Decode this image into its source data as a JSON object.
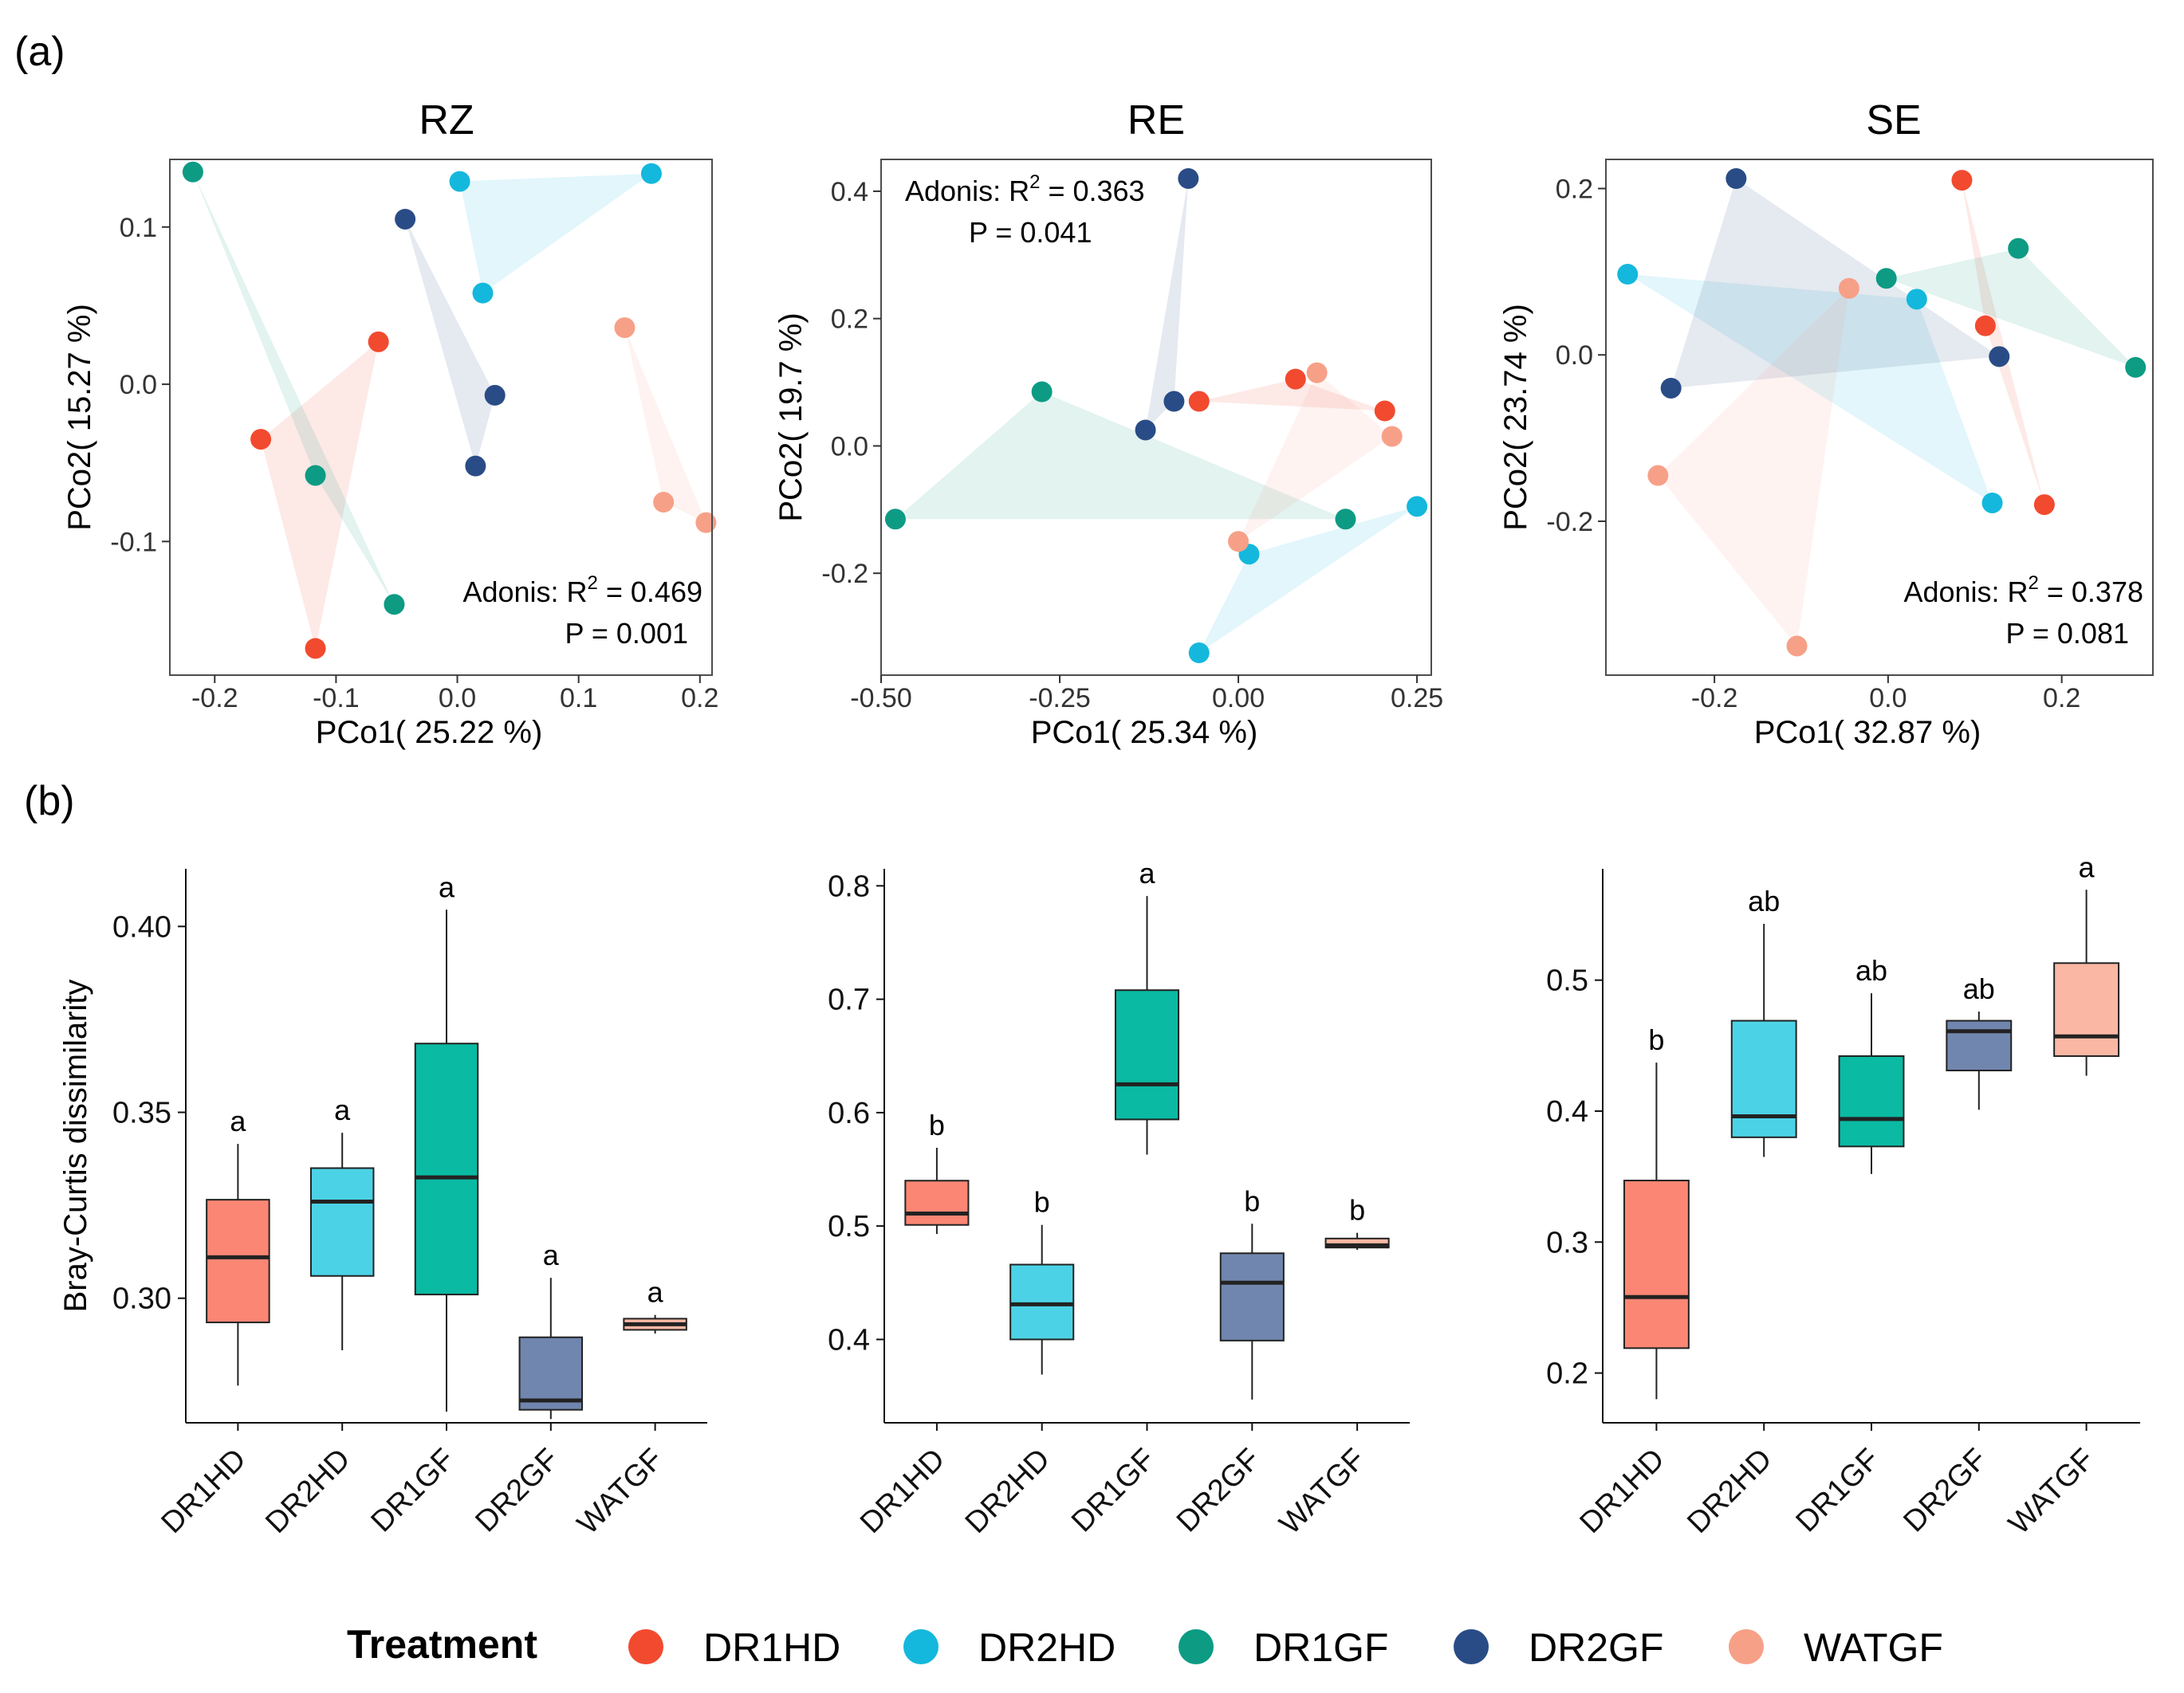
{
  "panel_labels": {
    "a": "(a)",
    "b": "(b)"
  },
  "colors": {
    "DR1HD": "#F24A2F",
    "DR2HD": "#14B8DC",
    "DR1GF": "#0D9B84",
    "DR2GF": "#2A4C86",
    "WATGF": "#F7A088",
    "box_DR1HD": "#FB8674",
    "box_DR2HD": "#4CD2E6",
    "box_DR1GF": "#0ABAA3",
    "box_DR2GF": "#7086AE",
    "box_WATGF": "#FAB8A4"
  },
  "legend": {
    "title": "Treatment",
    "items": [
      "DR1HD",
      "DR2HD",
      "DR1GF",
      "DR2GF",
      "WATGF"
    ]
  },
  "chart_data": [
    {
      "id": "pcoa_RZ",
      "type": "scatter",
      "title": "RZ",
      "xlabel": "PCo1( 25.22 %)",
      "ylabel": "PCo2( 15.27 %)",
      "xlim": [
        -0.237,
        0.21
      ],
      "ylim": [
        -0.185,
        0.143
      ],
      "xticks": [
        -0.2,
        -0.1,
        0.0,
        0.1,
        0.2
      ],
      "xtick_labels": [
        "-0.2",
        "-0.1",
        "0.0",
        "0.1",
        "0.2"
      ],
      "yticks": [
        -0.1,
        0.0,
        0.1
      ],
      "ytick_labels": [
        "-0.1",
        "0.0",
        "0.1"
      ],
      "adonis": {
        "text": "Adonis: R",
        "sup": "2",
        "value": " = 0.469",
        "p": "P = 0.001",
        "position": "bottom-right"
      },
      "series": [
        {
          "name": "DR1HD",
          "points": [
            [
              -0.065,
              0.027
            ],
            [
              -0.162,
              -0.035
            ],
            [
              -0.117,
              -0.168
            ]
          ]
        },
        {
          "name": "DR2HD",
          "points": [
            [
              0.002,
              0.129
            ],
            [
              0.16,
              0.134
            ],
            [
              0.021,
              0.058
            ]
          ]
        },
        {
          "name": "DR1GF",
          "points": [
            [
              -0.218,
              0.135
            ],
            [
              -0.117,
              -0.058
            ],
            [
              -0.052,
              -0.14
            ]
          ]
        },
        {
          "name": "DR2GF",
          "points": [
            [
              -0.043,
              0.105
            ],
            [
              0.031,
              -0.007
            ],
            [
              0.015,
              -0.052
            ]
          ]
        },
        {
          "name": "WATGF",
          "points": [
            [
              0.138,
              0.036
            ],
            [
              0.17,
              -0.075
            ],
            [
              0.205,
              -0.088
            ]
          ]
        }
      ]
    },
    {
      "id": "pcoa_RE",
      "type": "scatter",
      "title": "RE",
      "xlabel": "PCo1( 25.34 %)",
      "ylabel": "PCo2( 19.7 %)",
      "xlim": [
        -0.5,
        0.27
      ],
      "ylim": [
        -0.36,
        0.45
      ],
      "xticks": [
        -0.5,
        -0.25,
        0.0,
        0.25
      ],
      "xtick_labels": [
        "-0.50",
        "-0.25",
        "0.00",
        "0.25"
      ],
      "yticks": [
        -0.2,
        0.0,
        0.2,
        0.4
      ],
      "ytick_labels": [
        "-0.2",
        "0.0",
        "0.2",
        "0.4"
      ],
      "adonis": {
        "text": "Adonis: R",
        "sup": "2",
        "value": " = 0.363",
        "p": "P = 0.041",
        "position": "top-left"
      },
      "series": [
        {
          "name": "DR1HD",
          "points": [
            [
              -0.055,
              0.07
            ],
            [
              0.08,
              0.105
            ],
            [
              0.205,
              0.055
            ]
          ]
        },
        {
          "name": "DR2HD",
          "points": [
            [
              0.25,
              -0.095
            ],
            [
              0.015,
              -0.17
            ],
            [
              -0.055,
              -0.325
            ]
          ]
        },
        {
          "name": "DR1GF",
          "points": [
            [
              -0.275,
              0.085
            ],
            [
              -0.48,
              -0.115
            ],
            [
              0.15,
              -0.115
            ]
          ]
        },
        {
          "name": "DR2GF",
          "points": [
            [
              -0.07,
              0.42
            ],
            [
              -0.09,
              0.07
            ],
            [
              -0.13,
              0.025
            ]
          ]
        },
        {
          "name": "WATGF",
          "points": [
            [
              0.11,
              0.115
            ],
            [
              0.215,
              0.015
            ],
            [
              0.0,
              -0.15
            ]
          ]
        }
      ]
    },
    {
      "id": "pcoa_SE",
      "type": "scatter",
      "title": "SE",
      "xlabel": "PCo1( 32.87 %)",
      "ylabel": "PCo2( 23.74 %)",
      "xlim": [
        -0.325,
        0.305
      ],
      "ylim": [
        -0.385,
        0.235
      ],
      "xticks": [
        -0.2,
        0.0,
        0.2
      ],
      "xtick_labels": [
        "-0.2",
        "0.0",
        "0.2"
      ],
      "yticks": [
        -0.2,
        0.0,
        0.2
      ],
      "ytick_labels": [
        "-0.2",
        "0.0",
        "0.2"
      ],
      "adonis": {
        "text": "Adonis: R",
        "sup": "2",
        "value": " = 0.378",
        "p": "P = 0.081",
        "position": "bottom-right"
      },
      "series": [
        {
          "name": "DR1HD",
          "points": [
            [
              0.085,
              0.21
            ],
            [
              0.112,
              0.035
            ],
            [
              0.18,
              -0.18
            ]
          ]
        },
        {
          "name": "DR2HD",
          "points": [
            [
              -0.3,
              0.097
            ],
            [
              0.033,
              0.067
            ],
            [
              0.12,
              -0.178
            ]
          ]
        },
        {
          "name": "DR1GF",
          "points": [
            [
              -0.002,
              0.092
            ],
            [
              0.15,
              0.128
            ],
            [
              0.285,
              -0.015
            ]
          ]
        },
        {
          "name": "DR2GF",
          "points": [
            [
              -0.175,
              0.212
            ],
            [
              -0.25,
              -0.04
            ],
            [
              0.128,
              -0.002
            ]
          ]
        },
        {
          "name": "WATGF",
          "points": [
            [
              -0.045,
              0.08
            ],
            [
              -0.265,
              -0.145
            ],
            [
              -0.105,
              -0.35
            ]
          ]
        }
      ]
    },
    {
      "id": "box_RZ",
      "type": "box",
      "ylabel": "Bray-Curtis dissimilarity",
      "categories": [
        "DR1HD",
        "DR2HD",
        "DR1GF",
        "DR2GF",
        "WATGF"
      ],
      "ylim": [
        0.2665,
        0.4155
      ],
      "yticks": [
        0.3,
        0.35,
        0.4
      ],
      "ytick_labels": [
        "0.30",
        "0.35",
        "0.40"
      ],
      "boxes": [
        {
          "name": "DR1HD",
          "min": 0.2765,
          "q1": 0.2935,
          "median": 0.311,
          "q3": 0.3265,
          "max": 0.3415,
          "letter": "a"
        },
        {
          "name": "DR2HD",
          "min": 0.286,
          "q1": 0.306,
          "median": 0.326,
          "q3": 0.335,
          "max": 0.3445,
          "letter": "a"
        },
        {
          "name": "DR1GF",
          "min": 0.2695,
          "q1": 0.301,
          "median": 0.3325,
          "q3": 0.3685,
          "max": 0.4045,
          "letter": "a"
        },
        {
          "name": "DR2GF",
          "min": 0.2675,
          "q1": 0.27,
          "median": 0.2725,
          "q3": 0.2895,
          "max": 0.3055,
          "letter": "a"
        },
        {
          "name": "WATGF",
          "min": 0.2905,
          "q1": 0.2915,
          "median": 0.293,
          "q3": 0.2945,
          "max": 0.2955,
          "letter": "a"
        }
      ]
    },
    {
      "id": "box_RE",
      "type": "box",
      "ylabel": "",
      "categories": [
        "DR1HD",
        "DR2HD",
        "DR1GF",
        "DR2GF",
        "WATGF"
      ],
      "ylim": [
        0.3265,
        0.815
      ],
      "yticks": [
        0.4,
        0.5,
        0.6,
        0.7,
        0.8
      ],
      "ytick_labels": [
        "0.4",
        "0.5",
        "0.6",
        "0.7",
        "0.8"
      ],
      "boxes": [
        {
          "name": "DR1HD",
          "min": 0.493,
          "q1": 0.501,
          "median": 0.511,
          "q3": 0.54,
          "max": 0.569,
          "letter": "b"
        },
        {
          "name": "DR2HD",
          "min": 0.369,
          "q1": 0.4,
          "median": 0.431,
          "q3": 0.466,
          "max": 0.501,
          "letter": "b"
        },
        {
          "name": "DR1GF",
          "min": 0.563,
          "q1": 0.594,
          "median": 0.625,
          "q3": 0.708,
          "max": 0.791,
          "letter": "a"
        },
        {
          "name": "DR2GF",
          "min": 0.347,
          "q1": 0.399,
          "median": 0.45,
          "q3": 0.476,
          "max": 0.502,
          "letter": "b"
        },
        {
          "name": "WATGF",
          "min": 0.479,
          "q1": 0.481,
          "median": 0.483,
          "q3": 0.489,
          "max": 0.494,
          "letter": "b"
        }
      ]
    },
    {
      "id": "box_SE",
      "type": "box",
      "ylabel": "",
      "categories": [
        "DR1HD",
        "DR2HD",
        "DR1GF",
        "DR2GF",
        "WATGF"
      ],
      "ylim": [
        0.162,
        0.585
      ],
      "yticks": [
        0.2,
        0.3,
        0.4,
        0.5
      ],
      "ytick_labels": [
        "0.2",
        "0.3",
        "0.4",
        "0.5"
      ],
      "boxes": [
        {
          "name": "DR1HD",
          "min": 0.18,
          "q1": 0.219,
          "median": 0.258,
          "q3": 0.347,
          "max": 0.437,
          "letter": "b"
        },
        {
          "name": "DR2HD",
          "min": 0.365,
          "q1": 0.38,
          "median": 0.396,
          "q3": 0.469,
          "max": 0.543,
          "letter": "ab"
        },
        {
          "name": "DR1GF",
          "min": 0.352,
          "q1": 0.373,
          "median": 0.394,
          "q3": 0.442,
          "max": 0.49,
          "letter": "ab"
        },
        {
          "name": "DR2GF",
          "min": 0.401,
          "q1": 0.431,
          "median": 0.461,
          "q3": 0.469,
          "max": 0.476,
          "letter": "ab"
        },
        {
          "name": "WATGF",
          "min": 0.427,
          "q1": 0.442,
          "median": 0.457,
          "q3": 0.513,
          "max": 0.569,
          "letter": "a"
        }
      ]
    }
  ]
}
